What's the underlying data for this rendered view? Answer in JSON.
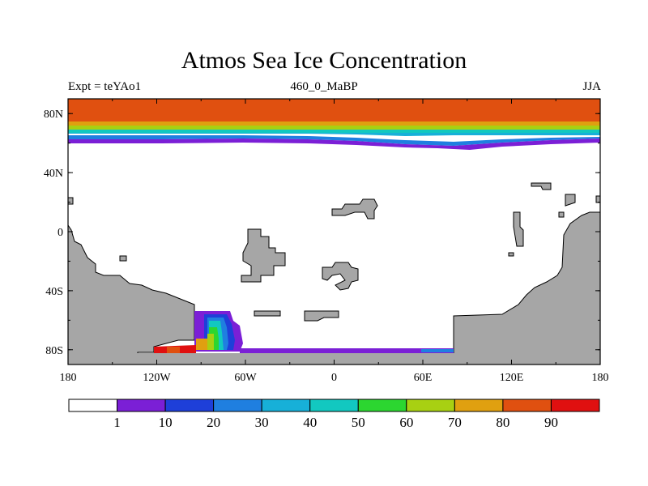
{
  "title": "Atmos Sea Ice Concentration",
  "subtitle_left": "Expt = teYAo1",
  "subtitle_center": "460_0_MaBP",
  "subtitle_right": "JJA",
  "x_ticks": [
    "180",
    "120W",
    "60W",
    "0",
    "60E",
    "120E",
    "180"
  ],
  "y_ticks": [
    "80N",
    "40N",
    "0",
    "40S",
    "80S"
  ],
  "colorbar": {
    "labels": [
      "1",
      "10",
      "20",
      "30",
      "40",
      "50",
      "60",
      "70",
      "80",
      "90"
    ],
    "colors": [
      "#ffffff",
      "#7b1fd6",
      "#1e3fd9",
      "#1f7fe0",
      "#17b0d8",
      "#12c8c0",
      "#2cd630",
      "#a8d012",
      "#e0a010",
      "#e05010",
      "#e01010"
    ]
  },
  "chart_data": {
    "type": "heatmap",
    "title": "Atmos Sea Ice Concentration",
    "variable": "Sea ice concentration (%)",
    "experiment": "teYAo1",
    "period": "460_0_MaBP",
    "season": "JJA",
    "xlim": [
      -180,
      180
    ],
    "ylim": [
      -90,
      90
    ],
    "levels": [
      1,
      10,
      20,
      30,
      40,
      50,
      60,
      70,
      80,
      90
    ],
    "arctic_ice_edge_lat": 62,
    "southern_ice_region": "partial near 80S, 120W–60W and along coast to 80E",
    "land_color": "#a6a6a6"
  }
}
